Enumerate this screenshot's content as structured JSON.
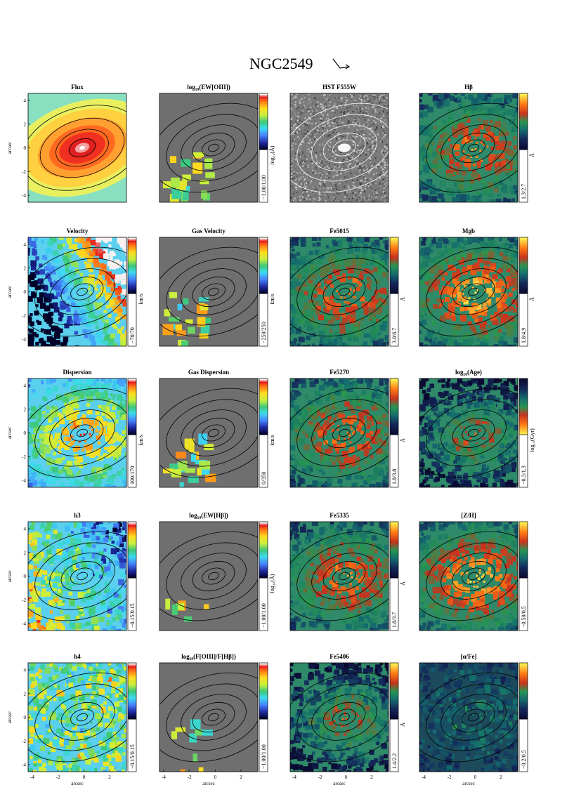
{
  "figure": {
    "title": "NGC2549",
    "axis_unit": "arcsec",
    "y_ticks": [
      "-4",
      "-2",
      "0",
      "2",
      "4"
    ],
    "x_ticks": [
      "-4",
      "-2",
      "0",
      "2"
    ]
  },
  "rows": [
    [
      {
        "title": "Flux",
        "type": "flux",
        "cb": false,
        "range": ""
      },
      {
        "title": "log₁₀(EW[OIII])",
        "type": "gas",
        "cb": true,
        "cbmap": "rainbow",
        "unit": "log₁₀(Å)",
        "range": "−1.00/1.00"
      },
      {
        "title": "HST F555W",
        "type": "hst",
        "cb": false,
        "range": ""
      },
      {
        "title": "Hβ",
        "type": "index",
        "cb": true,
        "cbmap": "index",
        "unit": "Å",
        "range": "1.3/2.7"
      }
    ],
    [
      {
        "title": "Velocity",
        "type": "velocity",
        "cb": true,
        "cbmap": "rainbow",
        "unit": "km/s",
        "range": "−70/70"
      },
      {
        "title": "Gas Velocity",
        "type": "gas",
        "cb": true,
        "cbmap": "rainbow",
        "unit": "km/s",
        "range": "−250/250"
      },
      {
        "title": "Fe5015",
        "type": "index",
        "cb": true,
        "cbmap": "index",
        "unit": "Å",
        "range": "3.0/6.7"
      },
      {
        "title": "Mgb",
        "type": "indexhot",
        "cb": true,
        "cbmap": "index",
        "unit": "Å",
        "range": "1.8/4.9"
      }
    ],
    [
      {
        "title": "Dispersion",
        "type": "dispersion",
        "cb": true,
        "cbmap": "rainbow",
        "unit": "km/s",
        "range": "100/170"
      },
      {
        "title": "Gas Dispersion",
        "type": "gas",
        "cb": true,
        "cbmap": "rainbow",
        "unit": "km/s",
        "range": "0/350"
      },
      {
        "title": "Fe5270",
        "type": "index",
        "cb": true,
        "cbmap": "index",
        "unit": "Å",
        "range": "1.8/3.8"
      },
      {
        "title": "log₁₀(Age)",
        "type": "indexdark",
        "cb": true,
        "cbmap": "indexrev",
        "unit": "log₁₀(Gyr)",
        "range": "−0.3/1.3"
      }
    ],
    [
      {
        "title": "h3",
        "type": "h3",
        "cb": true,
        "cbmap": "rainbow",
        "unit": "",
        "range": "−0.15/0.15"
      },
      {
        "title": "log₁₀(EW[Hβ])",
        "type": "gasempty",
        "cb": true,
        "cbmap": "rainbow",
        "unit": "log₁₀(Å)",
        "range": "−1.00/1.00"
      },
      {
        "title": "Fe5335",
        "type": "index",
        "cb": true,
        "cbmap": "index",
        "unit": "Å",
        "range": "1.8/3.7"
      },
      {
        "title": "[Z/H]",
        "type": "indexhot",
        "cb": true,
        "cbmap": "index",
        "unit": "",
        "range": "−0.50/0.5"
      }
    ],
    [
      {
        "title": "h4",
        "type": "h4",
        "cb": true,
        "cbmap": "rainbow",
        "unit": "",
        "range": "−0.15/0.15"
      },
      {
        "title": "log₁₀(F[OIII]/F[Hβ])",
        "type": "gasfew",
        "cb": true,
        "cbmap": "rainbow",
        "unit": "",
        "range": "−1.00/1.00"
      },
      {
        "title": "Fe5406",
        "type": "indexdark",
        "cb": true,
        "cbmap": "index",
        "unit": "Å",
        "range": "1.4/2.2"
      },
      {
        "title": "[α/Fe]",
        "type": "alpha",
        "cb": true,
        "cbmap": "index",
        "unit": "",
        "range": "−0.2/0.5"
      }
    ]
  ]
}
